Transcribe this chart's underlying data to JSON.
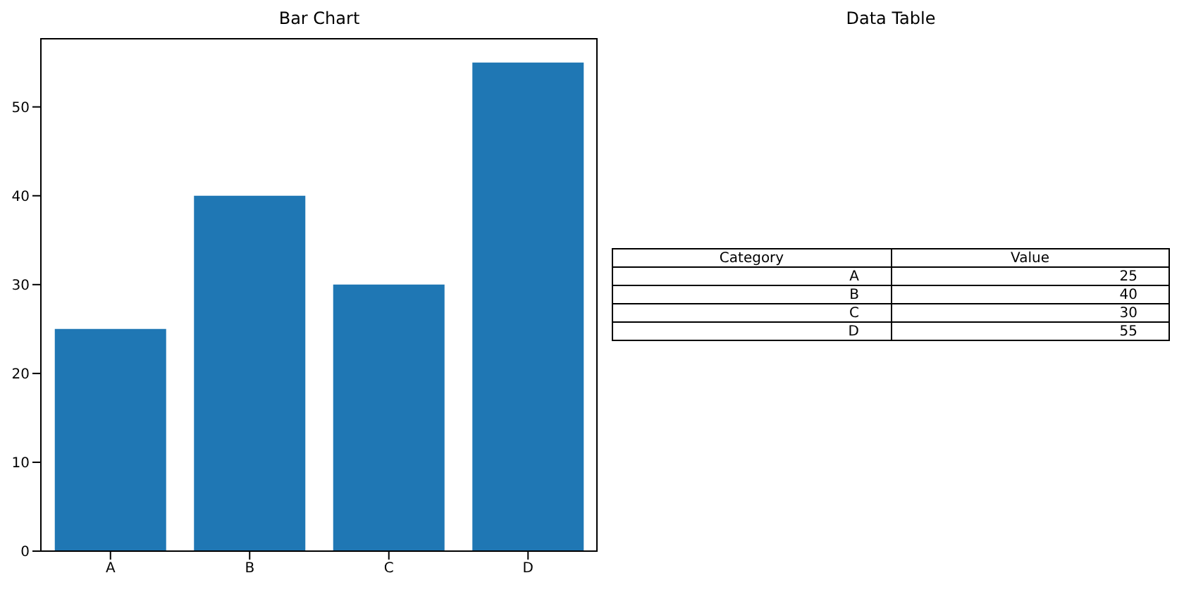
{
  "chart_data": [
    {
      "type": "bar",
      "title": "Bar Chart",
      "categories": [
        "A",
        "B",
        "C",
        "D"
      ],
      "values": [
        25,
        40,
        30,
        55
      ],
      "color": "#1f77b4",
      "ylim": [
        0,
        57.75
      ],
      "yticks": [
        0,
        10,
        20,
        30,
        40,
        50
      ]
    },
    {
      "type": "other",
      "title": "Data Table",
      "categories": [
        "A",
        "B",
        "C",
        "D"
      ],
      "values": [
        25,
        40,
        30,
        55
      ],
      "data_labels": true,
      "annotations": [
        "Category",
        "Value"
      ]
    }
  ]
}
